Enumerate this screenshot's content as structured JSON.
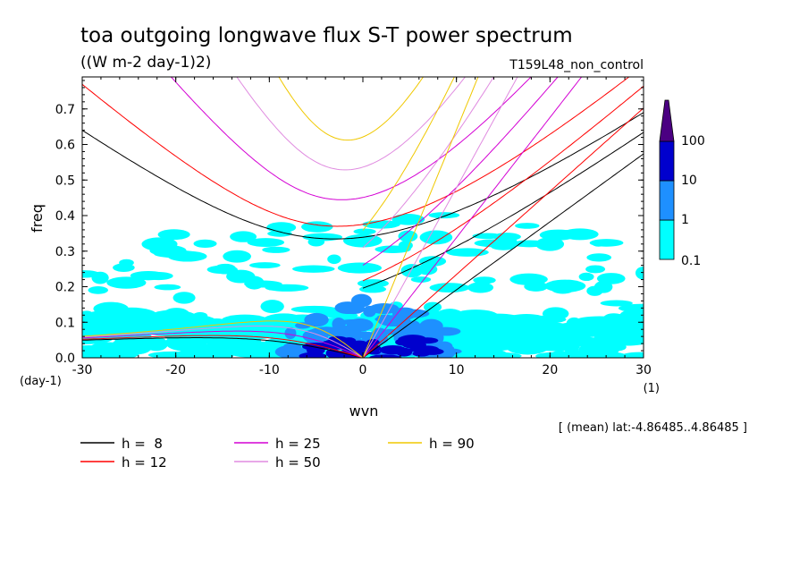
{
  "chart_data": {
    "type": "line",
    "title": "toa outgoing longwave flux S-T power spectrum",
    "subtitle": "((W m-2 day-1)2)",
    "run_label": "T159L48_non_control",
    "xlabel": "wvn",
    "ylabel": "freq",
    "x_unit": "(1)",
    "y_unit": "(day-1)",
    "footer": "[ (mean) lat:-4.86485..4.86485 ]",
    "xlim": [
      -30,
      30
    ],
    "ylim": [
      0,
      0.79
    ],
    "x_ticks": [
      -30,
      -20,
      -10,
      0,
      10,
      20,
      30
    ],
    "y_ticks": [
      0.0,
      0.1,
      0.2,
      0.3,
      0.4,
      0.5,
      0.6,
      0.7
    ],
    "x_tick_labels": [
      "-30",
      "-20",
      "-10",
      "0",
      "10",
      "20",
      "30"
    ],
    "y_tick_labels": [
      "0.0",
      "0.1",
      "0.2",
      "0.3",
      "0.4",
      "0.5",
      "0.6",
      "0.7"
    ],
    "colorbar": {
      "levels": [
        "0.1",
        "1",
        "10",
        "100"
      ],
      "colors": [
        "#00ffff",
        "#1e90ff",
        "#0000cd",
        "#4b0082"
      ]
    },
    "contour_fill": {
      "colors": {
        "low": "#00ffff",
        "mid": "#1e90ff",
        "high": "#0000cd"
      },
      "regions": [
        {
          "level": "low",
          "wvn": [
            -30,
            30
          ],
          "freq": [
            0.0,
            0.13
          ]
        },
        {
          "level": "low",
          "wvn": [
            -30,
            30
          ],
          "freq": [
            0.13,
            0.45
          ]
        },
        {
          "level": "mid",
          "wvn": [
            -9,
            12
          ],
          "freq": [
            0.0,
            0.1
          ]
        },
        {
          "level": "mid",
          "wvn": [
            -2,
            5
          ],
          "freq": [
            0.05,
            0.22
          ]
        },
        {
          "level": "high",
          "wvn": [
            -6,
            9
          ],
          "freq": [
            0.0,
            0.06
          ]
        }
      ]
    },
    "dispersion_curves": [
      {
        "name": "h =  8",
        "h": 8,
        "color": "#000000"
      },
      {
        "name": "h = 12",
        "h": 12,
        "color": "#ff0000"
      },
      {
        "name": "h = 25",
        "h": 25,
        "color": "#d400d4"
      },
      {
        "name": "h = 50",
        "h": 50,
        "color": "#e08ce0"
      },
      {
        "name": "h = 90",
        "h": 90,
        "color": "#f0c800"
      }
    ]
  },
  "legend": [
    {
      "label": "h =  8",
      "color": "#000000"
    },
    {
      "label": "h = 12",
      "color": "#ff0000"
    },
    {
      "label": "h = 25",
      "color": "#d400d4"
    },
    {
      "label": "h = 50",
      "color": "#e08ce0"
    },
    {
      "label": "h = 90",
      "color": "#f0c800"
    }
  ]
}
